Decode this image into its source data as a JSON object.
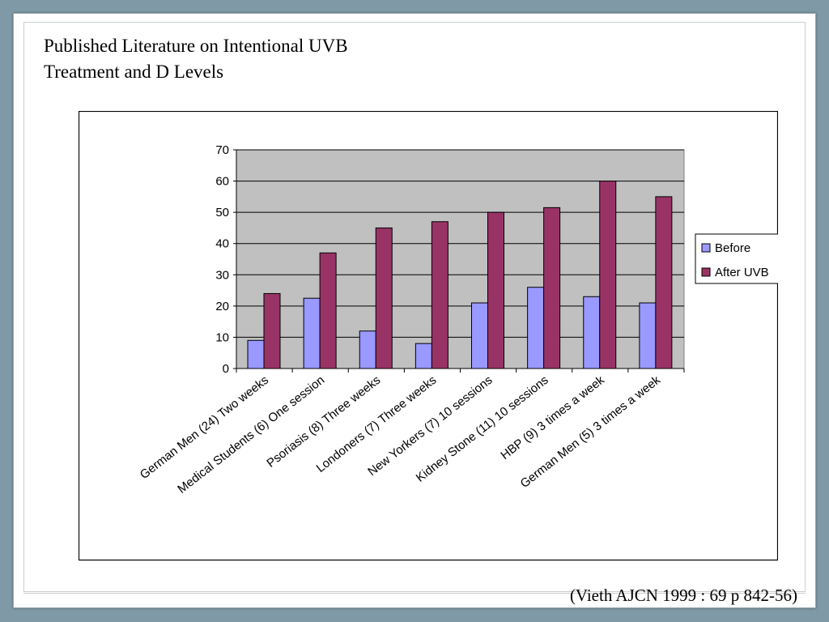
{
  "slide": {
    "title_line1": "Published Literature on Intentional UVB",
    "title_line2": "Treatment and D Levels",
    "citation": "(Vieth AJCN 1999 : 69 p 842-56)"
  },
  "colors": {
    "background": "#7f9aa6",
    "plot_area": "#c0c0c0",
    "before": "#9999ff",
    "after": "#993366"
  },
  "chart_data": {
    "type": "bar",
    "title": "",
    "xlabel": "",
    "ylabel": "",
    "ylim": [
      0,
      70
    ],
    "yticks": [
      0,
      10,
      20,
      30,
      40,
      50,
      60,
      70
    ],
    "grid": true,
    "legend_position": "right",
    "categories": [
      "German Men (24) Two weeks",
      "Medical Students (6) One session",
      "Psoriasis (8) Three weeks",
      "Londoners (7) Three weeks",
      "New Yorkers (7) 10 sessions",
      "Kidney Stone (11) 10 sessions",
      "HBP (9) 3 times a week",
      "German Men (5) 3 times a week"
    ],
    "series": [
      {
        "name": "Before",
        "color": "#9999ff",
        "values": [
          9,
          22.5,
          12,
          8,
          21,
          26,
          23,
          21
        ]
      },
      {
        "name": "After UVB",
        "color": "#993366",
        "values": [
          24,
          37,
          45,
          47,
          50,
          51.5,
          60,
          55
        ]
      }
    ]
  }
}
